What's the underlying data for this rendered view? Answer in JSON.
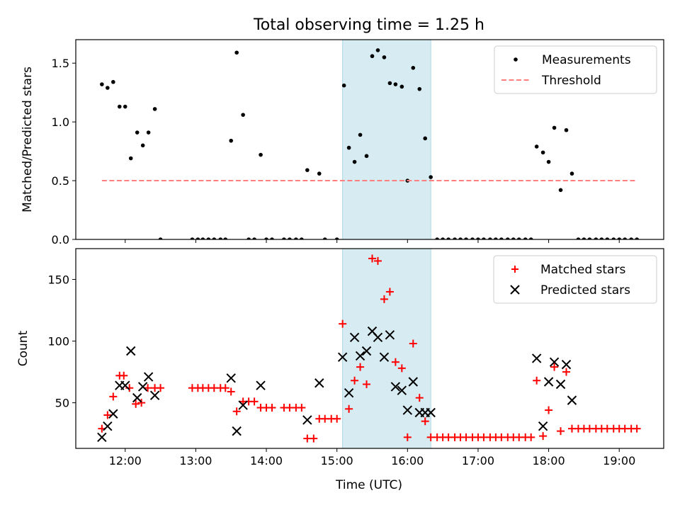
{
  "figure": {
    "title": "Total observing time = 1.25 h"
  },
  "chart_data": [
    {
      "type": "scatter",
      "ylabel": "Matched/Predicted stars",
      "xlim": [
        11.3,
        19.63
      ],
      "ylim": [
        0,
        1.7
      ],
      "yticks": [
        0.0,
        0.5,
        1.0,
        1.5
      ],
      "ytick_labels": [
        "0.0",
        "0.5",
        "1.0",
        "1.5"
      ],
      "highlight_span": [
        15.08,
        16.33
      ],
      "highlight_color": "#add8e6",
      "legend": {
        "placement": "upper right"
      },
      "series": [
        {
          "name": "Measurements",
          "marker": "dot",
          "color": "#000000",
          "x": [
            11.67,
            11.75,
            11.83,
            11.92,
            12.0,
            12.08,
            12.17,
            12.25,
            12.33,
            12.42,
            12.5,
            12.95,
            13.03,
            13.1,
            13.18,
            13.26,
            13.35,
            13.42,
            13.5,
            13.58,
            13.67,
            13.75,
            13.83,
            13.92,
            14.0,
            14.08,
            14.25,
            14.33,
            14.42,
            14.5,
            14.58,
            14.75,
            14.83,
            15.0,
            15.1,
            15.17,
            15.25,
            15.33,
            15.42,
            15.5,
            15.58,
            15.67,
            15.75,
            15.83,
            15.92,
            16.0,
            16.08,
            16.17,
            16.25,
            16.33,
            16.42,
            16.5,
            16.58,
            16.67,
            16.75,
            16.83,
            16.92,
            17.0,
            17.08,
            17.17,
            17.25,
            17.33,
            17.42,
            17.5,
            17.58,
            17.67,
            17.75,
            17.83,
            17.92,
            18.0,
            18.08,
            18.17,
            18.25,
            18.33,
            18.42,
            18.5,
            18.58,
            18.67,
            18.75,
            18.83,
            18.92,
            19.0,
            19.08,
            19.17,
            19.25
          ],
          "y": [
            1.32,
            1.29,
            1.34,
            1.13,
            1.13,
            0.69,
            0.91,
            0.8,
            0.91,
            1.11,
            0.0,
            0.0,
            0.0,
            0.0,
            0.0,
            0.0,
            0.0,
            0.0,
            0.84,
            1.59,
            1.06,
            0.0,
            0.0,
            0.72,
            0.0,
            0.0,
            0.0,
            0.0,
            0.0,
            0.0,
            0.59,
            0.56,
            0.0,
            0.0,
            1.31,
            0.78,
            0.66,
            0.89,
            0.71,
            1.56,
            1.61,
            1.55,
            1.33,
            1.32,
            1.3,
            0.5,
            1.46,
            1.28,
            0.86,
            0.53,
            0.0,
            0.0,
            0.0,
            0.0,
            0.0,
            0.0,
            0.0,
            0.0,
            0.0,
            0.0,
            0.0,
            0.0,
            0.0,
            0.0,
            0.0,
            0.0,
            0.0,
            0.79,
            0.74,
            0.66,
            0.95,
            0.42,
            0.93,
            0.56,
            0.0,
            0.0,
            0.0,
            0.0,
            0.0,
            0.0,
            0.0,
            0.0,
            0.0,
            0.0,
            0.0
          ]
        },
        {
          "name": "Threshold",
          "marker": "dashed-line",
          "color": "#ff7f7f",
          "x": [
            11.67,
            19.25
          ],
          "y": [
            0.5,
            0.5
          ]
        }
      ]
    },
    {
      "type": "scatter",
      "ylabel": "Count",
      "xlabel": "Time (UTC)",
      "xlim": [
        11.3,
        19.63
      ],
      "ylim": [
        13,
        175
      ],
      "yticks": [
        50,
        100,
        150
      ],
      "ytick_labels": [
        "50",
        "100",
        "150"
      ],
      "xticks": [
        12,
        13,
        14,
        15,
        16,
        17,
        18,
        19
      ],
      "xtick_labels": [
        "12:00",
        "13:00",
        "14:00",
        "15:00",
        "16:00",
        "17:00",
        "18:00",
        "19:00"
      ],
      "highlight_span": [
        15.08,
        16.33
      ],
      "highlight_color": "#add8e6",
      "legend": {
        "placement": "upper right"
      },
      "series": [
        {
          "name": "Matched stars",
          "marker": "plus",
          "color": "#ff0000",
          "x": [
            11.67,
            11.75,
            11.83,
            11.92,
            11.98,
            12.06,
            12.15,
            12.23,
            12.32,
            12.42,
            12.5,
            12.95,
            13.03,
            13.1,
            13.18,
            13.26,
            13.35,
            13.42,
            13.5,
            13.58,
            13.67,
            13.75,
            13.83,
            13.92,
            14.0,
            14.08,
            14.25,
            14.33,
            14.42,
            14.5,
            14.58,
            14.67,
            14.75,
            14.83,
            14.92,
            15.0,
            15.08,
            15.17,
            15.25,
            15.33,
            15.42,
            15.5,
            15.58,
            15.67,
            15.75,
            15.83,
            15.92,
            16.0,
            16.08,
            16.17,
            16.25,
            16.33,
            16.42,
            16.5,
            16.58,
            16.67,
            16.75,
            16.83,
            16.92,
            17.0,
            17.08,
            17.17,
            17.25,
            17.33,
            17.42,
            17.5,
            17.58,
            17.67,
            17.75,
            17.83,
            17.92,
            18.0,
            18.08,
            18.17,
            18.25,
            18.33,
            18.42,
            18.5,
            18.58,
            18.67,
            18.75,
            18.83,
            18.92,
            19.0,
            19.08,
            19.17,
            19.25
          ],
          "y": [
            29,
            40,
            55,
            72,
            72,
            62,
            49,
            50,
            62,
            62,
            62,
            62,
            62,
            62,
            62,
            62,
            62,
            62,
            59,
            43,
            51,
            51,
            51,
            46,
            46,
            46,
            46,
            46,
            46,
            46,
            21,
            21,
            37,
            37,
            37,
            37,
            114,
            45,
            68,
            79,
            65,
            167,
            165,
            134,
            140,
            83,
            78,
            22,
            98,
            54,
            35,
            22,
            22,
            22,
            22,
            22,
            22,
            22,
            22,
            22,
            22,
            22,
            22,
            22,
            22,
            22,
            22,
            22,
            22,
            68,
            23,
            44,
            79,
            27,
            75,
            29,
            29,
            29,
            29,
            29,
            29,
            29,
            29,
            29,
            29,
            29,
            29
          ]
        },
        {
          "name": "Predicted stars",
          "marker": "x",
          "color": "#000000",
          "x": [
            11.67,
            11.75,
            11.83,
            11.92,
            12.0,
            12.08,
            12.17,
            12.25,
            12.33,
            12.42,
            13.5,
            13.58,
            13.67,
            13.92,
            14.58,
            14.75,
            15.08,
            15.17,
            15.25,
            15.33,
            15.42,
            15.5,
            15.58,
            15.67,
            15.75,
            15.83,
            15.92,
            16.0,
            16.08,
            16.17,
            16.25,
            16.33,
            17.83,
            17.92,
            18.0,
            18.08,
            18.17,
            18.25,
            18.33
          ],
          "y": [
            22,
            31,
            41,
            64,
            64,
            92,
            54,
            63,
            71,
            56,
            70,
            27,
            48,
            64,
            36,
            66,
            87,
            58,
            103,
            88,
            92,
            108,
            103,
            87,
            105,
            63,
            60,
            44,
            67,
            42,
            42,
            42,
            86,
            31,
            67,
            83,
            65,
            81,
            52
          ]
        }
      ]
    }
  ]
}
